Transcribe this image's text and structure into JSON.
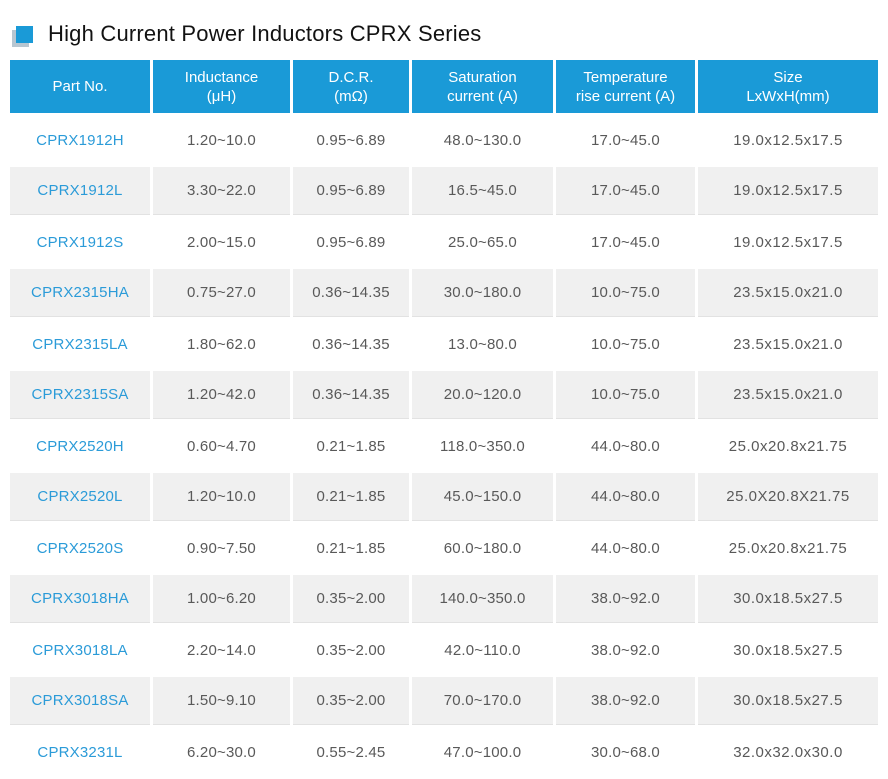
{
  "page": {
    "title": "High Current Power Inductors CPRX Series"
  },
  "colors": {
    "accent": "#1a9ad7",
    "link": "#2b9bd8",
    "row_alt": "#f0f0f0",
    "body_text": "#595959"
  },
  "table": {
    "columns": [
      {
        "line1": "Part No.",
        "line2": ""
      },
      {
        "line1": "Inductance",
        "line2": "(μH)"
      },
      {
        "line1": "D.C.R.",
        "line2": "(mΩ)"
      },
      {
        "line1": "Saturation",
        "line2": "current (A)"
      },
      {
        "line1": "Temperature",
        "line2": "rise current (A)"
      },
      {
        "line1": "Size",
        "line2": "LxWxH(mm)"
      }
    ],
    "rows": [
      {
        "part_no": "CPRX1912H",
        "inductance": "1.20~10.0",
        "dcr": "0.95~6.89",
        "saturation_current": "48.0~130.0",
        "temp_rise_current": "17.0~45.0",
        "size": "19.0x12.5x17.5"
      },
      {
        "part_no": "CPRX1912L",
        "inductance": "3.30~22.0",
        "dcr": "0.95~6.89",
        "saturation_current": "16.5~45.0",
        "temp_rise_current": "17.0~45.0",
        "size": "19.0x12.5x17.5"
      },
      {
        "part_no": "CPRX1912S",
        "inductance": "2.00~15.0",
        "dcr": "0.95~6.89",
        "saturation_current": "25.0~65.0",
        "temp_rise_current": "17.0~45.0",
        "size": "19.0x12.5x17.5"
      },
      {
        "part_no": "CPRX2315HA",
        "inductance": "0.75~27.0",
        "dcr": "0.36~14.35",
        "saturation_current": "30.0~180.0",
        "temp_rise_current": "10.0~75.0",
        "size": "23.5x15.0x21.0"
      },
      {
        "part_no": "CPRX2315LA",
        "inductance": "1.80~62.0",
        "dcr": "0.36~14.35",
        "saturation_current": "13.0~80.0",
        "temp_rise_current": "10.0~75.0",
        "size": "23.5x15.0x21.0"
      },
      {
        "part_no": "CPRX2315SA",
        "inductance": "1.20~42.0",
        "dcr": "0.36~14.35",
        "saturation_current": "20.0~120.0",
        "temp_rise_current": "10.0~75.0",
        "size": "23.5x15.0x21.0"
      },
      {
        "part_no": "CPRX2520H",
        "inductance": "0.60~4.70",
        "dcr": "0.21~1.85",
        "saturation_current": "118.0~350.0",
        "temp_rise_current": "44.0~80.0",
        "size": "25.0x20.8x21.75"
      },
      {
        "part_no": "CPRX2520L",
        "inductance": "1.20~10.0",
        "dcr": "0.21~1.85",
        "saturation_current": "45.0~150.0",
        "temp_rise_current": "44.0~80.0",
        "size": "25.0X20.8X21.75"
      },
      {
        "part_no": "CPRX2520S",
        "inductance": "0.90~7.50",
        "dcr": "0.21~1.85",
        "saturation_current": "60.0~180.0",
        "temp_rise_current": "44.0~80.0",
        "size": "25.0x20.8x21.75"
      },
      {
        "part_no": "CPRX3018HA",
        "inductance": "1.00~6.20",
        "dcr": "0.35~2.00",
        "saturation_current": "140.0~350.0",
        "temp_rise_current": "38.0~92.0",
        "size": "30.0x18.5x27.5"
      },
      {
        "part_no": "CPRX3018LA",
        "inductance": "2.20~14.0",
        "dcr": "0.35~2.00",
        "saturation_current": "42.0~110.0",
        "temp_rise_current": "38.0~92.0",
        "size": "30.0x18.5x27.5"
      },
      {
        "part_no": "CPRX3018SA",
        "inductance": "1.50~9.10",
        "dcr": "0.35~2.00",
        "saturation_current": "70.0~170.0",
        "temp_rise_current": "38.0~92.0",
        "size": "30.0x18.5x27.5"
      },
      {
        "part_no": "CPRX3231L",
        "inductance": "6.20~30.0",
        "dcr": "0.55~2.45",
        "saturation_current": "47.0~100.0",
        "temp_rise_current": "30.0~68.0",
        "size": "32.0x32.0x30.0"
      }
    ]
  }
}
